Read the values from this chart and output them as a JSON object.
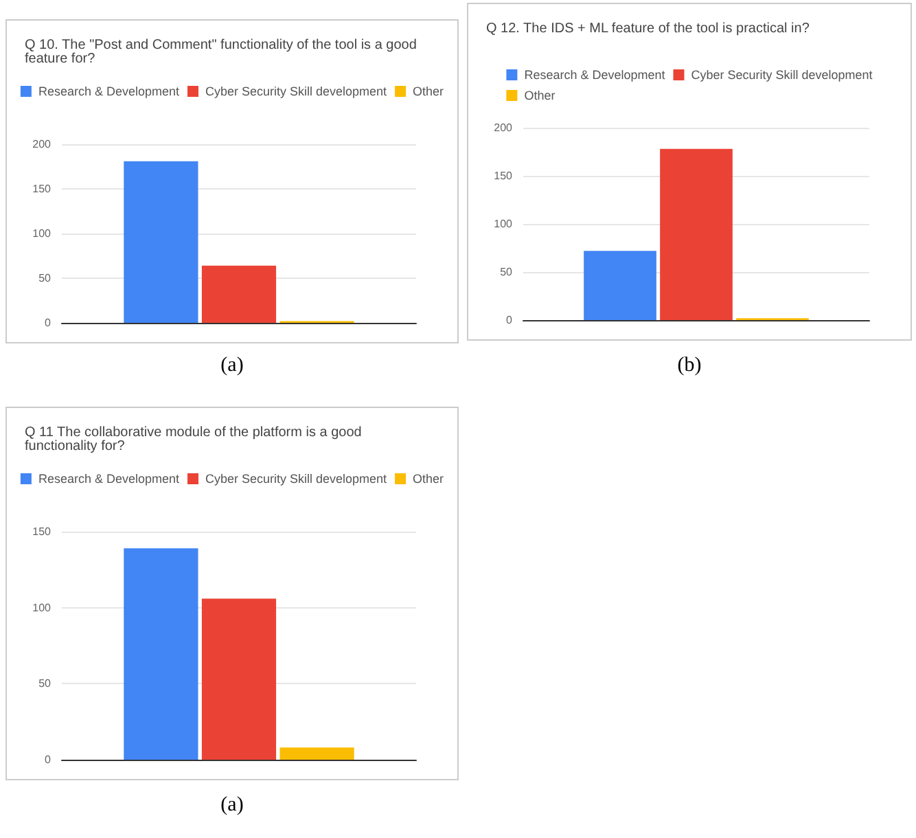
{
  "chart_data": [
    {
      "type": "bar",
      "title": "Q 10. The \"Post and Comment\" functionality of the tool is a good feature for?",
      "categories": [
        null
      ],
      "series": [
        {
          "name": "Research & Development",
          "color": "#4285f4",
          "values": [
            181
          ]
        },
        {
          "name": "Cyber Security Skill development",
          "color": "#ea4335",
          "values": [
            64
          ]
        },
        {
          "name": "Other",
          "color": "#fbbc04",
          "values": [
            2
          ]
        }
      ],
      "ylim": [
        0,
        200
      ],
      "yticks": [
        0,
        50,
        100,
        150,
        200
      ],
      "grid": "y",
      "legend": "top",
      "annotations": [
        "(a)"
      ]
    },
    {
      "type": "bar",
      "title": "Q 12. The IDS + ML feature of the tool is practical in?",
      "categories": [
        null
      ],
      "series": [
        {
          "name": "Research & Development",
          "color": "#4285f4",
          "values": [
            72
          ]
        },
        {
          "name": "Cyber Security Skill development",
          "color": "#ea4335",
          "values": [
            178
          ]
        },
        {
          "name": "Other",
          "color": "#fbbc04",
          "values": [
            2
          ]
        }
      ],
      "ylim": [
        0,
        200
      ],
      "yticks": [
        0,
        50,
        100,
        150,
        200
      ],
      "grid": "y",
      "legend": "top",
      "annotations": [
        "(b)"
      ]
    },
    {
      "type": "bar",
      "title": "Q 11 The collaborative module of the platform is a good functionality for?",
      "categories": [
        null
      ],
      "series": [
        {
          "name": "Research & Development",
          "color": "#4285f4",
          "values": [
            139
          ]
        },
        {
          "name": "Cyber Security Skill development",
          "color": "#ea4335",
          "values": [
            106
          ]
        },
        {
          "name": "Other",
          "color": "#fbbc04",
          "values": [
            8
          ]
        }
      ],
      "ylim": [
        0,
        150
      ],
      "yticks": [
        0,
        50,
        100,
        150
      ],
      "grid": "y",
      "legend": "top",
      "annotations": [
        "(a)"
      ]
    }
  ]
}
